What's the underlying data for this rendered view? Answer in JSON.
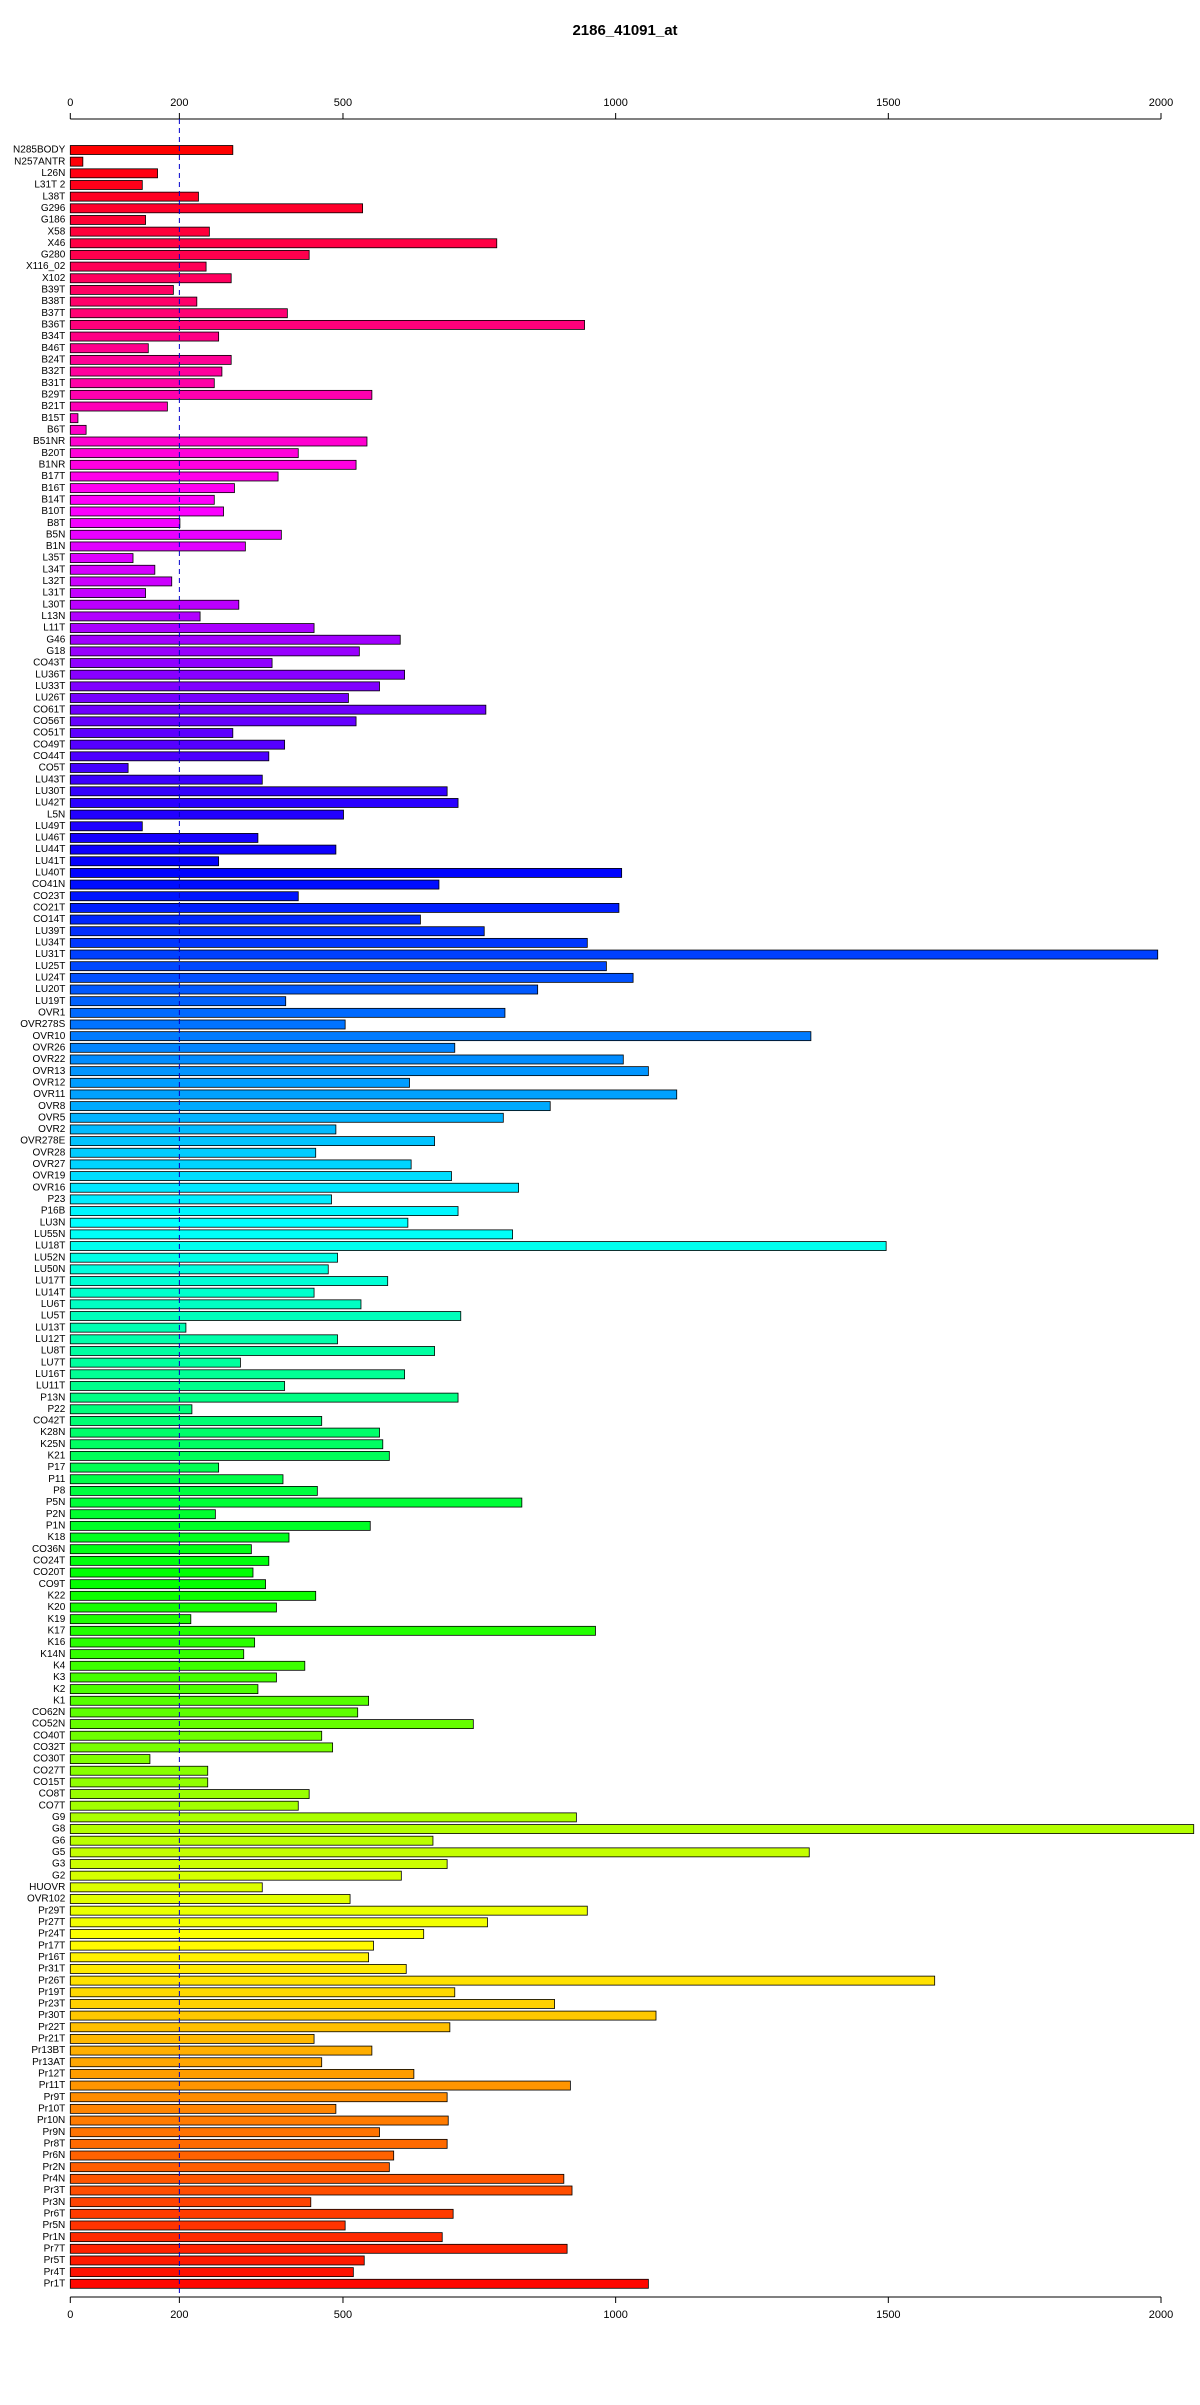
{
  "chart_data": {
    "type": "bar",
    "orientation": "horizontal",
    "title": "2186_41091_at",
    "categories": [
      "N285BODY",
      "N257ANTR",
      "L26N",
      "L31T 2",
      "L38T",
      "G296",
      "G186",
      "X58",
      "X46",
      "G280",
      "X116_02",
      "X102",
      "B39T",
      "B38T",
      "B37T",
      "B36T",
      "B34T",
      "B46T",
      "B24T",
      "B32T",
      "B31T",
      "B29T",
      "B21T",
      "B15T",
      "B6T",
      "B51NR",
      "B20T",
      "B1NR",
      "B17T",
      "B16T",
      "B14T",
      "B10T",
      "B8T",
      "B5N",
      "B1N",
      "L35T",
      "L34T",
      "L32T",
      "L31T",
      "L30T",
      "L13N",
      "L11T",
      "G46",
      "G18",
      "CO43T",
      "LU36T",
      "LU33T",
      "LU26T",
      "CO61T",
      "CO56T",
      "CO51T",
      "CO49T",
      "CO44T",
      "CO5T",
      "LU43T",
      "LU30T",
      "LU42T",
      "L5N",
      "LU49T",
      "LU46T",
      "LU44T",
      "LU41T",
      "LU40T",
      "CO41N",
      "CO23T",
      "CO21T",
      "CO14T",
      "LU39T",
      "LU34T",
      "LU31T",
      "LU25T",
      "LU24T",
      "LU20T",
      "LU19T",
      "OVR1",
      "OVR278S",
      "OVR10",
      "OVR26",
      "OVR22",
      "OVR13",
      "OVR12",
      "OVR11",
      "OVR8",
      "OVR5",
      "OVR2",
      "OVR278E",
      "OVR28",
      "OVR27",
      "OVR19",
      "OVR16",
      "P23",
      "P16B",
      "LU3N",
      "LU55N",
      "LU18T",
      "LU52N",
      "LU50N",
      "LU17T",
      "LU14T",
      "LU6T",
      "LU5T",
      "LU13T",
      "LU12T",
      "LU8T",
      "LU7T",
      "LU16T",
      "LU11T",
      "P13N",
      "P22",
      "CO42T",
      "K28N",
      "K25N",
      "K21",
      "P17",
      "P11",
      "P8",
      "P5N",
      "P2N",
      "P1N",
      "K18",
      "CO36N",
      "CO24T",
      "CO20T",
      "CO9T",
      "K22",
      "K20",
      "K19",
      "K17",
      "K16",
      "K14N",
      "K4",
      "K3",
      "K2",
      "K1",
      "CO62N",
      "CO52N",
      "CO40T",
      "CO32T",
      "CO30T",
      "CO27T",
      "CO15T",
      "CO8T",
      "CO7T",
      "G9",
      "G8",
      "G6",
      "G5",
      "G3",
      "G2",
      "HUOVR",
      "OVR102",
      "Pr29T",
      "Pr27T",
      "Pr24T",
      "Pr17T",
      "Pr16T",
      "Pr31T",
      "Pr26T",
      "Pr19T",
      "Pr23T",
      "Pr30T",
      "Pr22T",
      "Pr21T",
      "Pr13BT",
      "Pr13AT",
      "Pr12T",
      "Pr11T",
      "Pr9T",
      "Pr10T",
      "Pr10N",
      "Pr9N",
      "Pr8T",
      "Pr6N",
      "Pr2N",
      "Pr4N",
      "Pr3T",
      "Pr3N",
      "Pr6T",
      "Pr5N",
      "Pr1N",
      "Pr7T",
      "Pr5T",
      "Pr4T",
      "Pr1T"
    ],
    "values": [
      298,
      23,
      160,
      132,
      235,
      536,
      138,
      255,
      782,
      438,
      249,
      295,
      189,
      232,
      398,
      943,
      272,
      143,
      295,
      278,
      264,
      553,
      178,
      14,
      29,
      544,
      418,
      524,
      381,
      301,
      264,
      281,
      201,
      387,
      321,
      115,
      155,
      186,
      138,
      309,
      238,
      447,
      605,
      530,
      370,
      613,
      567,
      510,
      762,
      524,
      298,
      393,
      364,
      106,
      352,
      691,
      711,
      501,
      132,
      344,
      487,
      272,
      1011,
      676,
      418,
      1006,
      642,
      759,
      948,
      1994,
      983,
      1032,
      857,
      395,
      797,
      504,
      1358,
      705,
      1014,
      1060,
      622,
      1112,
      880,
      794,
      487,
      668,
      450,
      625,
      699,
      822,
      479,
      711,
      619,
      811,
      1496,
      490,
      473,
      582,
      447,
      533,
      716,
      212,
      490,
      668,
      312,
      613,
      393,
      711,
      223,
      461,
      567,
      573,
      585,
      272,
      390,
      453,
      828,
      266,
      550,
      401,
      332,
      364,
      335,
      358,
      450,
      378,
      221,
      963,
      338,
      318,
      430,
      378,
      344,
      547,
      527,
      739,
      461,
      481,
      146,
      252,
      252,
      438,
      418,
      928,
      2060,
      665,
      1355,
      691,
      607,
      352,
      513,
      948,
      765,
      648,
      556,
      547,
      616,
      1585,
      705,
      888,
      1074,
      696,
      447,
      553,
      461,
      630,
      917,
      691,
      487,
      693,
      567,
      691,
      593,
      585,
      905,
      920,
      441,
      702,
      504,
      682,
      911,
      539,
      519,
      1060
    ],
    "colors": [
      "hsl(360,100%,50%)",
      "hsl(358,100%,50%)",
      "hsl(356,100%,50%)",
      "hsl(354,100%,50%)",
      "hsl(352,100%,50%)",
      "hsl(350,100%,50%)",
      "hsl(348,100%,50%)",
      "hsl(346,100%,50%)",
      "hsl(344,100%,50%)",
      "hsl(342,100%,50%)",
      "hsl(340,100%,50%)",
      "hsl(338,100%,50%)",
      "hsl(337,100%,50%)",
      "hsl(335,100%,50%)",
      "hsl(333,100%,50%)",
      "hsl(331,100%,50%)",
      "hsl(329,100%,50%)",
      "hsl(327,100%,50%)",
      "hsl(325,100%,50%)",
      "hsl(323,100%,50%)",
      "hsl(321,100%,50%)",
      "hsl(319,100%,50%)",
      "hsl(317,100%,50%)",
      "hsl(315,100%,50%)",
      "hsl(313,100%,50%)",
      "hsl(311,100%,50%)",
      "hsl(309,100%,50%)",
      "hsl(307,100%,50%)",
      "hsl(305,100%,50%)",
      "hsl(303,100%,50%)",
      "hsl(301,100%,50%)",
      "hsl(299,100%,50%)",
      "hsl(297,100%,50%)",
      "hsl(295,100%,50%)",
      "hsl(293,100%,50%)",
      "hsl(292,100%,50%)",
      "hsl(290,100%,50%)",
      "hsl(288,100%,50%)",
      "hsl(286,100%,50%)",
      "hsl(284,100%,50%)",
      "hsl(282,100%,50%)",
      "hsl(280,100%,50%)",
      "hsl(278,100%,50%)",
      "hsl(276,100%,50%)",
      "hsl(274,100%,50%)",
      "hsl(272,100%,50%)",
      "hsl(270,100%,50%)",
      "hsl(268,100%,50%)",
      "hsl(266,100%,50%)",
      "hsl(264,100%,50%)",
      "hsl(262,100%,50%)",
      "hsl(260,100%,50%)",
      "hsl(258,100%,50%)",
      "hsl(256,100%,50%)",
      "hsl(254,100%,50%)",
      "hsl(252,100%,50%)",
      "hsl(250,100%,50%)",
      "hsl(248,100%,50%)",
      "hsl(247,100%,50%)",
      "hsl(245,100%,50%)",
      "hsl(243,100%,50%)",
      "hsl(241,100%,50%)",
      "hsl(239,100%,50%)",
      "hsl(237,100%,50%)",
      "hsl(235,100%,50%)",
      "hsl(233,100%,50%)",
      "hsl(231,100%,50%)",
      "hsl(229,100%,50%)",
      "hsl(227,100%,50%)",
      "hsl(225,100%,50%)",
      "hsl(223,100%,50%)",
      "hsl(221,100%,50%)",
      "hsl(219,100%,50%)",
      "hsl(217,100%,50%)",
      "hsl(215,100%,50%)",
      "hsl(213,100%,50%)",
      "hsl(211,100%,50%)",
      "hsl(209,100%,50%)",
      "hsl(207,100%,50%)",
      "hsl(205,100%,50%)",
      "hsl(203,100%,50%)",
      "hsl(202,100%,50%)",
      "hsl(200,100%,50%)",
      "hsl(198,100%,50%)",
      "hsl(196,100%,50%)",
      "hsl(194,100%,50%)",
      "hsl(192,100%,50%)",
      "hsl(190,100%,50%)",
      "hsl(188,100%,50%)",
      "hsl(186,100%,50%)",
      "hsl(184,100%,50%)",
      "hsl(182,100%,50%)",
      "hsl(180,100%,50%)",
      "hsl(178,100%,50%)",
      "hsl(176,100%,50%)",
      "hsl(174,100%,50%)",
      "hsl(172,100%,50%)",
      "hsl(170,100%,50%)",
      "hsl(168,100%,50%)",
      "hsl(166,100%,50%)",
      "hsl(164,100%,50%)",
      "hsl(162,100%,50%)",
      "hsl(160,100%,50%)",
      "hsl(158,100%,50%)",
      "hsl(157,100%,50%)",
      "hsl(155,100%,50%)",
      "hsl(153,100%,50%)",
      "hsl(151,100%,50%)",
      "hsl(149,100%,50%)",
      "hsl(147,100%,50%)",
      "hsl(145,100%,50%)",
      "hsl(143,100%,50%)",
      "hsl(141,100%,50%)",
      "hsl(139,100%,50%)",
      "hsl(137,100%,50%)",
      "hsl(135,100%,50%)",
      "hsl(133,100%,50%)",
      "hsl(131,100%,50%)",
      "hsl(129,100%,50%)",
      "hsl(127,100%,50%)",
      "hsl(125,100%,50%)",
      "hsl(123,100%,50%)",
      "hsl(121,100%,50%)",
      "hsl(119,100%,50%)",
      "hsl(117,100%,50%)",
      "hsl(115,100%,50%)",
      "hsl(113,100%,50%)",
      "hsl(112,100%,50%)",
      "hsl(110,100%,50%)",
      "hsl(108,100%,50%)",
      "hsl(106,100%,50%)",
      "hsl(104,100%,50%)",
      "hsl(102,100%,50%)",
      "hsl(100,100%,50%)",
      "hsl(98,100%,50%)",
      "hsl(96,100%,50%)",
      "hsl(94,100%,50%)",
      "hsl(92,100%,50%)",
      "hsl(90,100%,50%)",
      "hsl(88,100%,50%)",
      "hsl(86,100%,50%)",
      "hsl(84,100%,50%)",
      "hsl(82,100%,50%)",
      "hsl(80,100%,50%)",
      "hsl(78,100%,50%)",
      "hsl(76,100%,50%)",
      "hsl(74,100%,50%)",
      "hsl(72,100%,50%)",
      "hsl(70,100%,50%)",
      "hsl(68,100%,50%)",
      "hsl(67,100%,50%)",
      "hsl(65,100%,50%)",
      "hsl(63,100%,50%)",
      "hsl(61,100%,50%)",
      "hsl(59,100%,50%)",
      "hsl(57,100%,50%)",
      "hsl(55,100%,50%)",
      "hsl(53,100%,50%)",
      "hsl(51,100%,50%)",
      "hsl(49,100%,50%)",
      "hsl(47,100%,50%)",
      "hsl(45,100%,50%)",
      "hsl(43,100%,50%)",
      "hsl(41,100%,50%)",
      "hsl(39,100%,50%)",
      "hsl(37,100%,50%)",
      "hsl(35,100%,50%)",
      "hsl(33,100%,50%)",
      "hsl(31,100%,50%)",
      "hsl(29,100%,50%)",
      "hsl(27,100%,50%)",
      "hsl(25,100%,50%)",
      "hsl(23,100%,50%)",
      "hsl(22,100%,50%)",
      "hsl(20,100%,50%)",
      "hsl(18,100%,50%)",
      "hsl(16,100%,50%)",
      "hsl(14,100%,50%)",
      "hsl(12,100%,50%)",
      "hsl(10,100%,50%)",
      "hsl(8,100%,50%)",
      "hsl(6,100%,50%)",
      "hsl(4,100%,50%)",
      "hsl(2,100%,50%)"
    ],
    "xlim": [
      0,
      2000
    ],
    "xticks": [
      0,
      200,
      500,
      1000,
      1500,
      2000
    ],
    "reference_line": 200,
    "reference_line_color": "#0000cc"
  }
}
